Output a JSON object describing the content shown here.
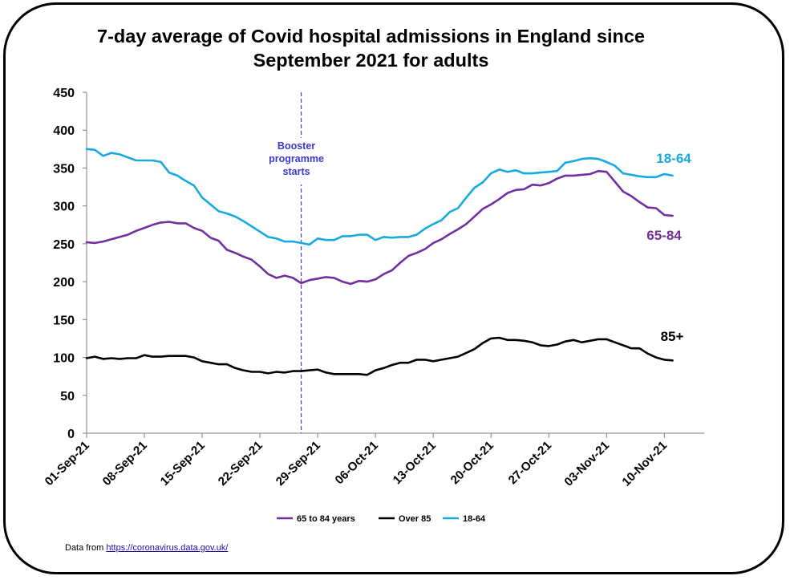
{
  "chart_data": {
    "type": "line",
    "title_lines": [
      "7-day average of Covid hospital admissions in England since",
      "September 2021 for adults"
    ],
    "xlabel": "",
    "ylabel": "",
    "ylim": [
      0,
      450
    ],
    "yticks": [
      0,
      50,
      100,
      150,
      200,
      250,
      300,
      350,
      400,
      450
    ],
    "x_start": "01-Sep-21",
    "x_end": "10-Nov-21",
    "xtick_labels": [
      "01-Sep-21",
      "08-Sep-21",
      "15-Sep-21",
      "22-Sep-21",
      "29-Sep-21",
      "06-Oct-21",
      "13-Oct-21",
      "20-Oct-21",
      "27-Oct-21",
      "03-Nov-21",
      "10-Nov-21"
    ],
    "grid": false,
    "legend_position": "bottom",
    "annotations": [
      {
        "text_lines": [
          "Booster",
          "programme",
          "starts"
        ],
        "x": "27-Sep-21",
        "style": "dashed-vertical-line"
      }
    ],
    "series": [
      {
        "name": "65 to 84 years",
        "end_label": "65-84",
        "color": "#7030A0",
        "values": [
          252,
          251,
          253,
          256,
          259,
          262,
          267,
          271,
          275,
          278,
          279,
          277,
          277,
          271,
          267,
          258,
          254,
          242,
          238,
          233,
          229,
          220,
          210,
          205,
          208,
          205,
          198,
          202,
          204,
          206,
          205,
          200,
          197,
          201,
          200,
          203,
          210,
          215,
          225,
          234,
          238,
          243,
          251,
          256,
          263,
          269,
          276,
          286,
          296,
          302,
          309,
          317,
          321,
          322,
          328,
          327,
          330,
          336,
          340,
          340,
          341,
          342,
          346,
          345,
          332,
          319,
          313,
          305,
          298,
          297,
          288,
          287
        ],
        "end_label_value": 287
      },
      {
        "name": "Over 85",
        "end_label": "85+",
        "color": "#000000",
        "values": [
          99,
          101,
          98,
          99,
          98,
          99,
          99,
          103,
          101,
          101,
          102,
          102,
          102,
          100,
          95,
          93,
          91,
          91,
          86,
          83,
          81,
          81,
          79,
          81,
          80,
          82,
          82,
          83,
          84,
          80,
          78,
          78,
          78,
          78,
          77,
          83,
          86,
          90,
          93,
          93,
          97,
          97,
          95,
          97,
          99,
          101,
          106,
          111,
          119,
          125,
          126,
          123,
          123,
          122,
          120,
          116,
          115,
          117,
          121,
          123,
          120,
          122,
          124,
          124,
          120,
          116,
          112,
          112,
          105,
          100,
          97,
          96
        ],
        "end_label_value": 96
      },
      {
        "name": "18-64",
        "end_label": "18-64",
        "color": "#18A9E1",
        "values": [
          375,
          374,
          366,
          370,
          368,
          364,
          360,
          360,
          360,
          358,
          344,
          340,
          333,
          327,
          311,
          302,
          293,
          290,
          286,
          280,
          273,
          266,
          259,
          257,
          253,
          253,
          251,
          249,
          257,
          255,
          255,
          260,
          260,
          262,
          262,
          255,
          259,
          258,
          259,
          259,
          262,
          270,
          276,
          281,
          292,
          297,
          311,
          324,
          331,
          343,
          348,
          345,
          347,
          343,
          343,
          344,
          345,
          346,
          357,
          359,
          362,
          363,
          362,
          358,
          353,
          343,
          341,
          339,
          338,
          338,
          342,
          340
        ],
        "end_label_value": 340
      }
    ]
  },
  "source": {
    "prefix": "Data from ",
    "link_text": "https://coronavirus.data.gov.uk/"
  }
}
